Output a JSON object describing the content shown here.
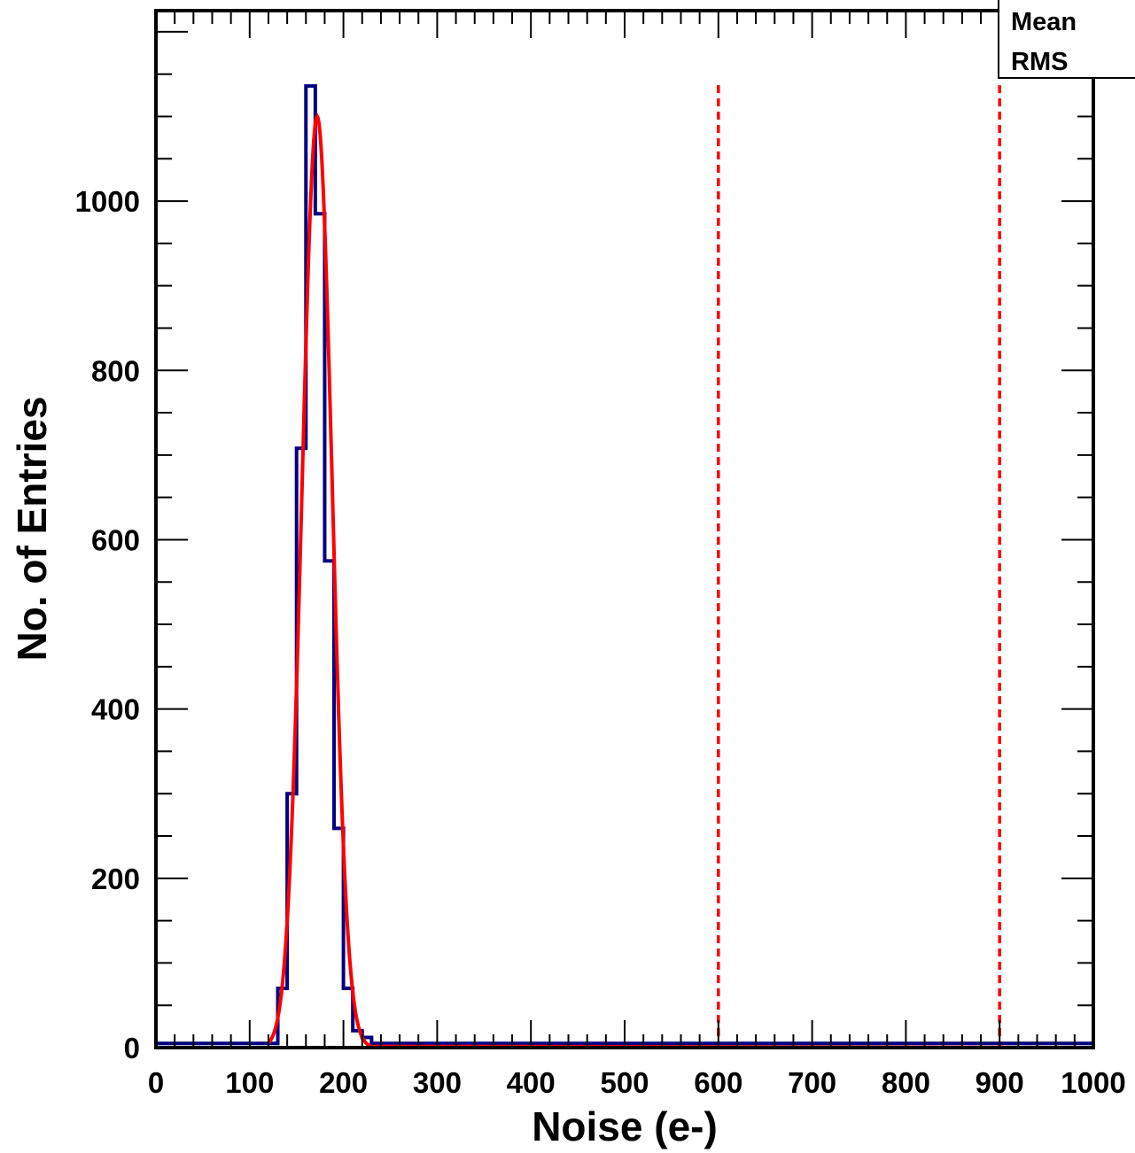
{
  "chart_data": {
    "type": "histogram",
    "title": "",
    "xlabel": "Noise (e-)",
    "ylabel": "No. of Entries",
    "xlim": [
      0,
      1000
    ],
    "ylim": [
      0,
      1225
    ],
    "x_ticks": [
      0,
      100,
      200,
      300,
      400,
      500,
      600,
      700,
      800,
      900,
      1000
    ],
    "y_ticks": [
      0,
      200,
      400,
      600,
      800,
      1000
    ],
    "grid": false,
    "stats_box": {
      "position": "top-right",
      "entries": [
        "Mean",
        "RMS"
      ]
    },
    "histogram": {
      "name": "",
      "color": "#000080",
      "bin_width": 10,
      "bins": [
        {
          "x0": 0,
          "count": 5
        },
        {
          "x0": 10,
          "count": 5
        },
        {
          "x0": 20,
          "count": 5
        },
        {
          "x0": 30,
          "count": 5
        },
        {
          "x0": 40,
          "count": 5
        },
        {
          "x0": 50,
          "count": 5
        },
        {
          "x0": 60,
          "count": 5
        },
        {
          "x0": 70,
          "count": 5
        },
        {
          "x0": 80,
          "count": 5
        },
        {
          "x0": 90,
          "count": 5
        },
        {
          "x0": 100,
          "count": 5
        },
        {
          "x0": 110,
          "count": 5
        },
        {
          "x0": 120,
          "count": 5
        },
        {
          "x0": 130,
          "count": 70
        },
        {
          "x0": 140,
          "count": 300
        },
        {
          "x0": 150,
          "count": 708
        },
        {
          "x0": 160,
          "count": 1136
        },
        {
          "x0": 170,
          "count": 985
        },
        {
          "x0": 180,
          "count": 575
        },
        {
          "x0": 190,
          "count": 259
        },
        {
          "x0": 200,
          "count": 70
        },
        {
          "x0": 210,
          "count": 20
        },
        {
          "x0": 220,
          "count": 12
        },
        {
          "x0": 230,
          "count": 5
        }
      ],
      "baseline_after": 5
    },
    "fit": {
      "type": "gaussian",
      "color": "#ff0000",
      "amplitude": 1100,
      "mean": 172,
      "sigma": 16
    },
    "vertical_lines": [
      {
        "x": 600,
        "color": "#ff0000",
        "style": "dashed"
      },
      {
        "x": 900,
        "color": "#ff0000",
        "style": "dashed"
      }
    ]
  }
}
